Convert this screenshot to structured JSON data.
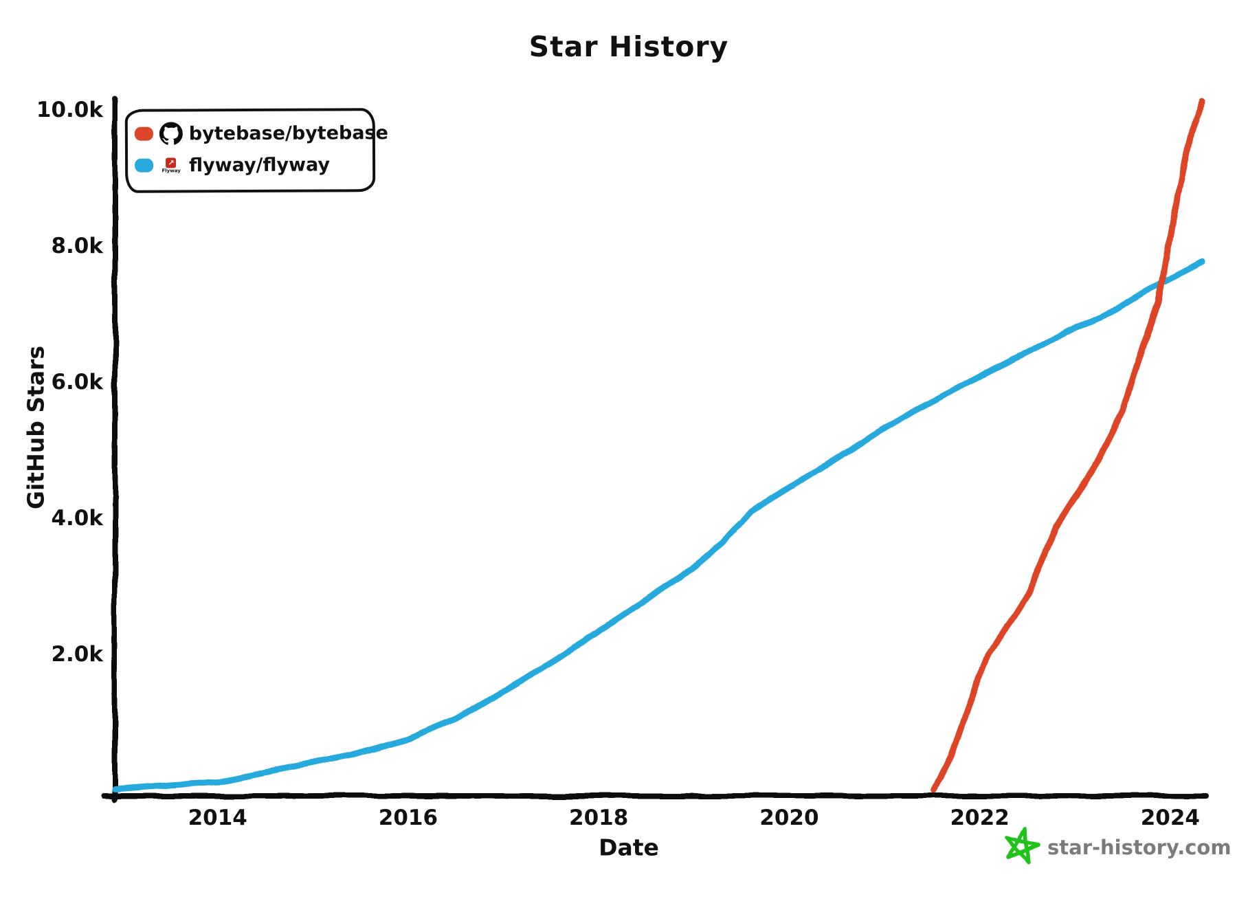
{
  "title": "Star History",
  "axes": {
    "x_label": "Date",
    "y_label": "GitHub Stars"
  },
  "legend": {
    "items": [
      {
        "label": "bytebase/bytebase",
        "color": "#dd4528",
        "icon": "github-octocat"
      },
      {
        "label": "flyway/flyway",
        "color": "#28a9dd",
        "icon": "flyway-logo"
      }
    ],
    "flyway_logo": {
      "text": "Flyway",
      "arrow": "↗"
    }
  },
  "watermark": {
    "text": "star-history.com",
    "text_color": "#7b7b7b",
    "star_color": "#21c21f"
  },
  "chart_data": {
    "type": "line",
    "title": "Star History",
    "xlabel": "Date",
    "ylabel": "GitHub Stars",
    "xlim": [
      2012.92,
      2024.34
    ],
    "ylim": [
      0,
      10170
    ],
    "grid": false,
    "legend_position": "top-left",
    "x_ticks": [
      {
        "value": 2014,
        "label": "2014"
      },
      {
        "value": 2016,
        "label": "2016"
      },
      {
        "value": 2018,
        "label": "2018"
      },
      {
        "value": 2020,
        "label": "2020"
      },
      {
        "value": 2022,
        "label": "2022"
      },
      {
        "value": 2024,
        "label": "2024"
      }
    ],
    "y_ticks": [
      {
        "value": 2000,
        "label": "2.0k"
      },
      {
        "value": 4000,
        "label": "4.0k"
      },
      {
        "value": 6000,
        "label": "6.0k"
      },
      {
        "value": 8000,
        "label": "8.0k"
      },
      {
        "value": 10000,
        "label": "10.0k"
      }
    ],
    "series": [
      {
        "name": "bytebase/bytebase",
        "color": "#dd4528",
        "points": [
          [
            2021.52,
            0
          ],
          [
            2021.7,
            500
          ],
          [
            2021.92,
            1400
          ],
          [
            2022.1,
            2000
          ],
          [
            2022.5,
            2900
          ],
          [
            2022.8,
            3860
          ],
          [
            2023.2,
            4740
          ],
          [
            2023.5,
            5580
          ],
          [
            2023.72,
            6560
          ],
          [
            2023.88,
            7150
          ],
          [
            2023.97,
            7900
          ],
          [
            2024.07,
            8700
          ],
          [
            2024.2,
            9600
          ],
          [
            2024.34,
            10120
          ]
        ]
      },
      {
        "name": "flyway/flyway",
        "color": "#28a9dd",
        "points": [
          [
            2012.92,
            20
          ],
          [
            2013.4,
            70
          ],
          [
            2014.0,
            130
          ],
          [
            2014.8,
            350
          ],
          [
            2015.4,
            520
          ],
          [
            2016.0,
            760
          ],
          [
            2016.5,
            1050
          ],
          [
            2017.2,
            1630
          ],
          [
            2017.6,
            1980
          ],
          [
            2018.05,
            2380
          ],
          [
            2018.5,
            2800
          ],
          [
            2018.85,
            3120
          ],
          [
            2019.3,
            3650
          ],
          [
            2019.6,
            4100
          ],
          [
            2020.2,
            4620
          ],
          [
            2020.9,
            5240
          ],
          [
            2021.35,
            5610
          ],
          [
            2022.0,
            6080
          ],
          [
            2022.5,
            6430
          ],
          [
            2023.0,
            6800
          ],
          [
            2023.45,
            7070
          ],
          [
            2023.9,
            7440
          ],
          [
            2024.34,
            7760
          ]
        ]
      }
    ]
  }
}
